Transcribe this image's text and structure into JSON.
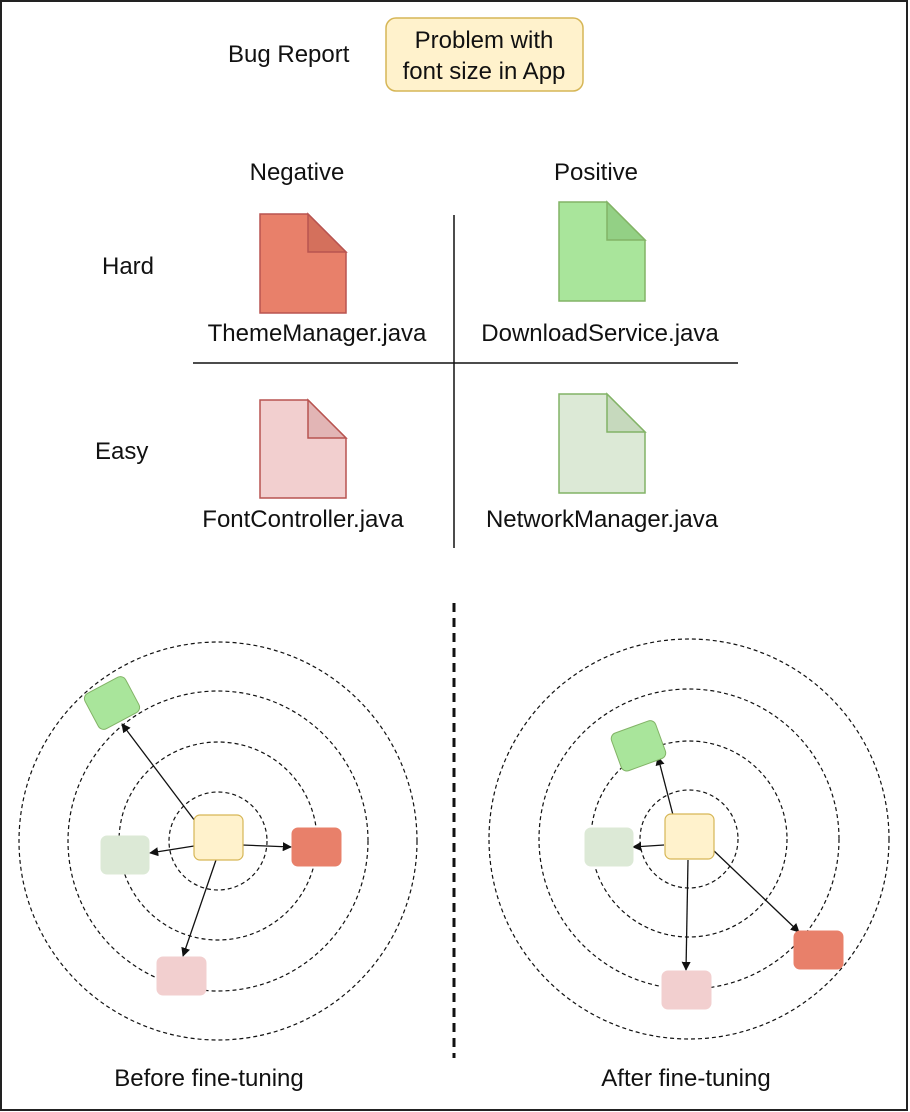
{
  "bug_report": {
    "label": "Bug Report",
    "text_line1": "Problem with",
    "text_line2": "font size in App"
  },
  "columns": {
    "negative": "Negative",
    "positive": "Positive"
  },
  "rows": {
    "hard": "Hard",
    "easy": "Easy"
  },
  "files": {
    "hard_negative": "ThemeManager.java",
    "hard_positive": "DownloadService.java",
    "easy_negative": "FontController.java",
    "easy_positive": "NetworkManager.java"
  },
  "captions": {
    "before": "Before fine-tuning",
    "after": "After fine-tuning"
  },
  "colors": {
    "hard_negative": "#E8806A",
    "hard_negative_fold": "#D4705C",
    "hard_negative_stroke": "#B85450",
    "hard_positive": "#A9E59B",
    "hard_positive_fold": "#93D085",
    "hard_positive_stroke": "#82B366",
    "easy_negative": "#F2CFCF",
    "easy_negative_fold": "#E2B5B5",
    "easy_negative_stroke": "#B85450",
    "easy_positive": "#DCE9D6",
    "easy_positive_fold": "#C6D9BD",
    "easy_positive_stroke": "#82B366",
    "query": "#FFF2CC",
    "query_stroke": "#D6B656"
  }
}
